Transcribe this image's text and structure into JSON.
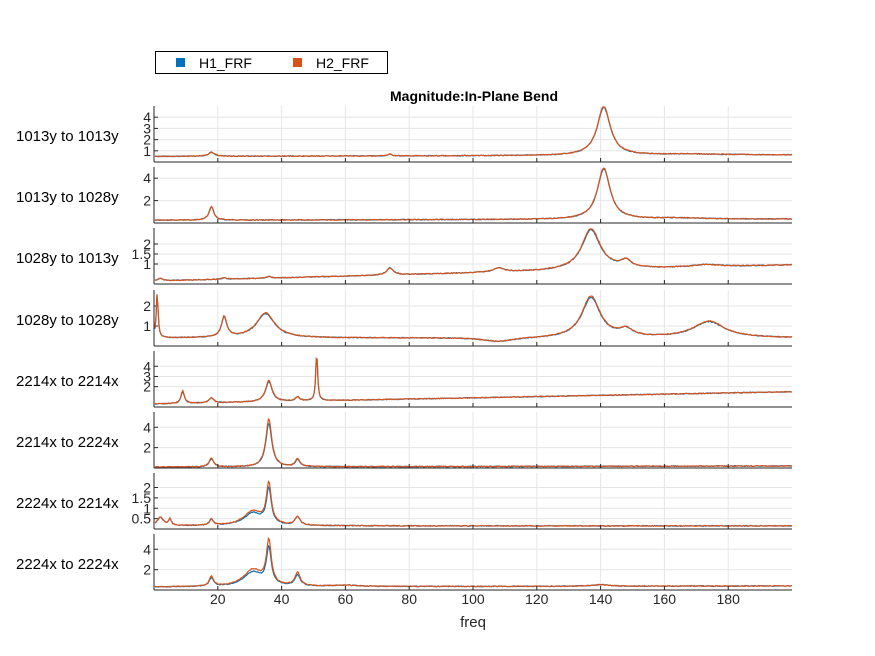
{
  "chart_data": {
    "type": "line",
    "title": "Magnitude:In-Plane Bend",
    "xlabel": "freq",
    "xlim": [
      0,
      200
    ],
    "xticks": [
      20,
      40,
      60,
      80,
      100,
      120,
      140,
      160,
      180
    ],
    "grid": true,
    "legend_placement": "top-left, above axes",
    "series_names": [
      "H1_FRF",
      "H2_FRF"
    ],
    "colors": {
      "H1_FRF": "#0072bd",
      "H2_FRF": "#d95319"
    },
    "panels": [
      {
        "label": "1013y to 1013y",
        "ylim": [
          0,
          5
        ],
        "yticks": [
          1,
          2,
          3,
          4
        ],
        "ytick_labels": [
          "1",
          "2",
          "3",
          "4"
        ],
        "baseline": 0.5,
        "peaks": [
          [
            18,
            0.35,
            1.2
          ],
          [
            74,
            0.15,
            0.8
          ],
          [
            141,
            4.3,
            2.5
          ],
          [
            166,
            0.08,
            10
          ],
          [
            180,
            0.05,
            20
          ]
        ],
        "slope": 0.0005,
        "h2_scale": 1.02
      },
      {
        "label": "1013y to 1028y",
        "ylim": [
          0,
          5
        ],
        "yticks": [
          2,
          4
        ],
        "ytick_labels": [
          "2",
          "4"
        ],
        "baseline": 0.25,
        "peaks": [
          [
            18,
            1.2,
            0.9
          ],
          [
            141,
            4.5,
            2.4
          ],
          [
            165,
            0.1,
            10
          ]
        ],
        "slope": 0.0005,
        "h2_scale": 1.02
      },
      {
        "label": "1028y to 1013y",
        "ylim": [
          0,
          2.8
        ],
        "yticks": [
          1,
          1.5,
          2
        ],
        "ytick_labels": [
          "1",
          "1.5",
          "2"
        ],
        "baseline": 0.15,
        "peaks": [
          [
            2,
            0.12,
            1
          ],
          [
            22,
            0.08,
            0.8
          ],
          [
            36,
            0.08,
            0.8
          ],
          [
            74,
            0.35,
            1.3
          ],
          [
            108,
            0.2,
            2
          ],
          [
            137,
            2.0,
            3.5
          ],
          [
            148,
            0.35,
            2
          ],
          [
            173,
            0.12,
            5
          ]
        ],
        "slope": 0.004,
        "h2_scale": 1.04
      },
      {
        "label": "1028y to 1028y",
        "ylim": [
          0,
          2.8
        ],
        "yticks": [
          1,
          2
        ],
        "ytick_labels": [
          "1",
          "2"
        ],
        "baseline": 0.4,
        "peaks": [
          [
            1,
            2.2,
            0.35
          ],
          [
            22,
            1.0,
            1.0
          ],
          [
            35,
            1.2,
            3.5
          ],
          [
            108,
            -0.2,
            6
          ],
          [
            137,
            2.0,
            3.5
          ],
          [
            148,
            0.35,
            2.5
          ],
          [
            174,
            0.8,
            6
          ]
        ],
        "slope": 0.0,
        "h2_scale": 1.04
      },
      {
        "label": "2214x to 2214x",
        "ylim": [
          0,
          5.5
        ],
        "yticks": [
          2,
          3,
          4
        ],
        "ytick_labels": [
          "2",
          "3",
          "4"
        ],
        "baseline": 0.3,
        "peaks": [
          [
            9,
            1.2,
            0.6
          ],
          [
            18,
            0.5,
            0.8
          ],
          [
            36,
            2.0,
            1.2
          ],
          [
            45,
            0.4,
            0.8
          ],
          [
            51,
            4.6,
            0.35
          ]
        ],
        "slope": 0.006,
        "h2_scale": 1.06
      },
      {
        "label": "2214x to 2224x",
        "ylim": [
          0,
          5.5
        ],
        "yticks": [
          2,
          4
        ],
        "ytick_labels": [
          "2",
          "4"
        ],
        "baseline": 0.1,
        "peaks": [
          [
            18,
            0.8,
            0.8
          ],
          [
            36,
            4.3,
            1.1
          ],
          [
            45,
            0.7,
            0.8
          ]
        ],
        "slope": 0.0005,
        "h2_scale": 1.1
      },
      {
        "label": "2224x to 2214x",
        "ylim": [
          0,
          2.7
        ],
        "yticks": [
          0.5,
          1,
          1.5,
          2
        ],
        "ytick_labels": [
          "0.5",
          "1",
          "1.5",
          "2"
        ],
        "baseline": 0.15,
        "peaks": [
          [
            2,
            0.4,
            1.2
          ],
          [
            5,
            0.3,
            0.5
          ],
          [
            18,
            0.3,
            0.7
          ],
          [
            31,
            0.6,
            3.5
          ],
          [
            36,
            1.7,
            0.9
          ],
          [
            45,
            0.4,
            1
          ]
        ],
        "slope": 0.0,
        "h2_scale": 1.15
      },
      {
        "label": "2224x to 2224x",
        "ylim": [
          0,
          5.5
        ],
        "yticks": [
          2,
          4
        ],
        "ytick_labels": [
          "2",
          "4"
        ],
        "baseline": 0.3,
        "peaks": [
          [
            18,
            0.8,
            0.8
          ],
          [
            31,
            1.4,
            3.5
          ],
          [
            36,
            3.6,
            0.9
          ],
          [
            45,
            1.1,
            1
          ],
          [
            60,
            0.12,
            5
          ],
          [
            140,
            0.15,
            3
          ]
        ],
        "slope": 0.0005,
        "h2_scale": 1.18
      }
    ]
  }
}
